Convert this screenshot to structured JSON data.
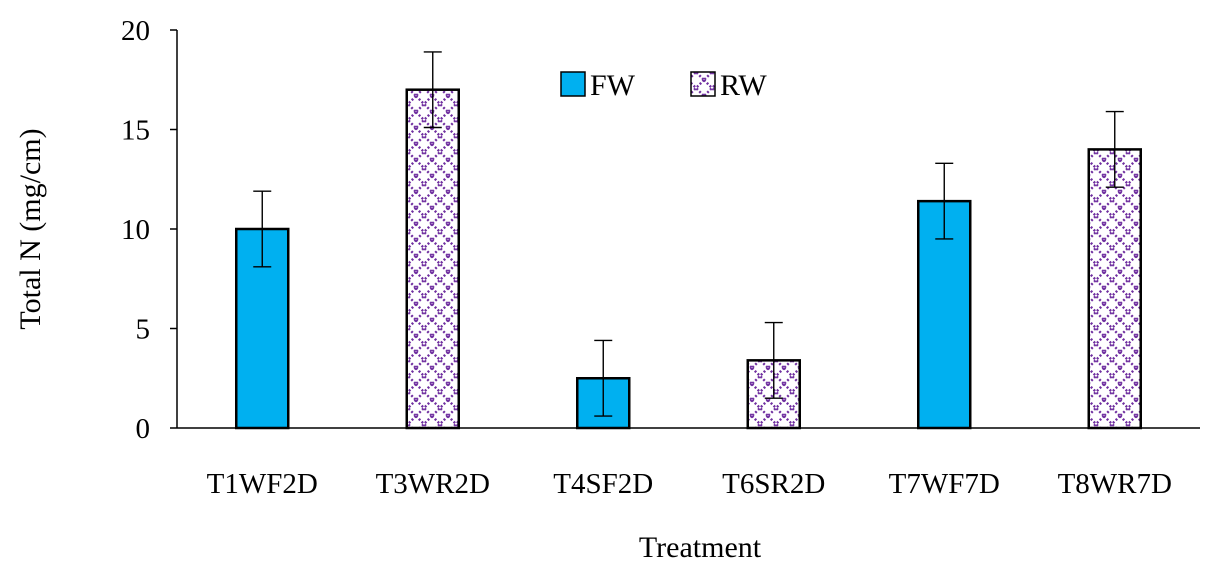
{
  "chart_data": {
    "type": "bar",
    "title": "",
    "xlabel": "Treatment",
    "ylabel": "Total N (mg/cm)",
    "ylim": [
      0,
      20
    ],
    "yticks": [
      0,
      5,
      10,
      15,
      20
    ],
    "categories": [
      "T1WF2D",
      "T3WR2D",
      "T4SF2D",
      "T6SR2D",
      "T7WF7D",
      "T8WR7D"
    ],
    "series": [
      {
        "name": "FW",
        "pattern": "solid",
        "color": "#00b0f0",
        "values": [
          10.0,
          null,
          2.5,
          null,
          11.4,
          null
        ],
        "errors": [
          1.9,
          null,
          1.9,
          null,
          1.9,
          null
        ]
      },
      {
        "name": "RW",
        "pattern": "crosshatch",
        "color": "#7030a0",
        "values": [
          null,
          17.0,
          null,
          3.4,
          null,
          14.0
        ],
        "errors": [
          null,
          1.9,
          null,
          1.9,
          null,
          1.9
        ]
      }
    ],
    "legend": {
      "position": "top-center"
    },
    "grid": false
  }
}
